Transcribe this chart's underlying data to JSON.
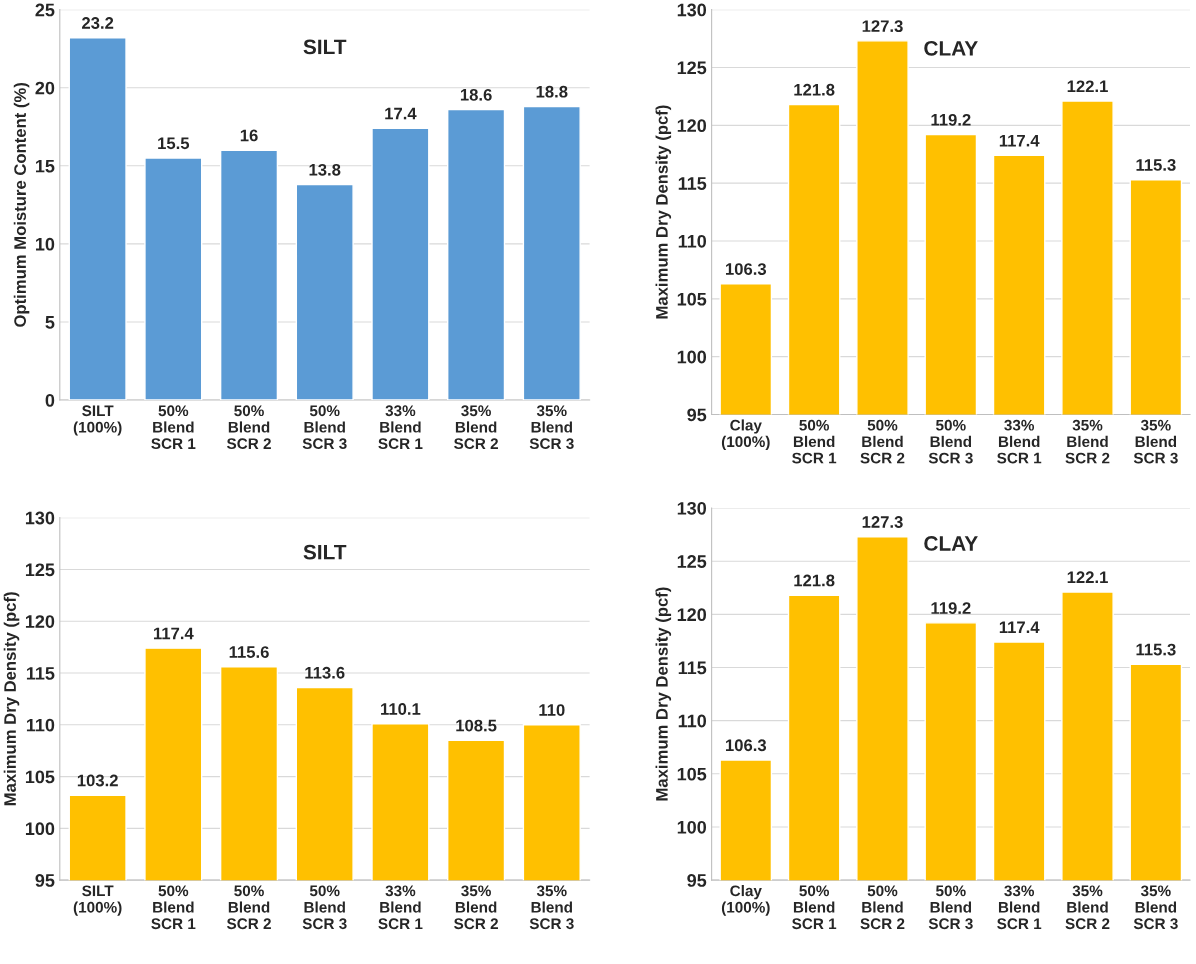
{
  "chart_data": [
    {
      "type": "bar",
      "title": "SILT",
      "ylabel": "Optimum Moisture Content (%)",
      "categories": [
        "SILT\n(100%)",
        "50%\nBlend\nSCR 1",
        "50%\nBlend\nSCR 2",
        "50%\nBlend\nSCR 3",
        "33%\nBlend\nSCR 1",
        "35%\nBlend\nSCR 2",
        "35%\nBlend\nSCR 3"
      ],
      "values": [
        23.2,
        15.5,
        16,
        13.8,
        17.4,
        18.6,
        18.8
      ],
      "color": "#5b9bd5",
      "ylim": [
        0,
        25
      ],
      "yticks": [
        0,
        5,
        10,
        15,
        20,
        25
      ],
      "grid": "y",
      "data_labels": true
    },
    {
      "type": "bar",
      "title": "CLAY",
      "ylabel": "Maximum Dry Density (pcf)",
      "categories": [
        "Clay\n(100%)",
        "50%\nBlend\nSCR 1",
        "50%\nBlend\nSCR 2",
        "50%\nBlend\nSCR 3",
        "33%\nBlend\nSCR 1",
        "35%\nBlend\nSCR 2",
        "35%\nBlend\nSCR 3"
      ],
      "values": [
        106.3,
        121.8,
        127.3,
        119.2,
        117.4,
        122.1,
        115.3
      ],
      "color": "#ffc000",
      "ylim": [
        95,
        130
      ],
      "yticks": [
        95,
        100,
        105,
        110,
        115,
        120,
        125,
        130
      ],
      "grid": "y",
      "data_labels": true
    },
    {
      "type": "bar",
      "title": "SILT",
      "ylabel": "Maximum Dry Density (pcf)",
      "categories": [
        "SILT\n(100%)",
        "50%\nBlend\nSCR 1",
        "50%\nBlend\nSCR 2",
        "50%\nBlend\nSCR 3",
        "33%\nBlend\nSCR 1",
        "35%\nBlend\nSCR 2",
        "35%\nBlend\nSCR 3"
      ],
      "values": [
        103.2,
        117.4,
        115.6,
        113.6,
        110.1,
        108.5,
        110
      ],
      "color": "#ffc000",
      "ylim": [
        95,
        130
      ],
      "yticks": [
        95,
        100,
        105,
        110,
        115,
        120,
        125,
        130
      ],
      "grid": "y",
      "data_labels": true
    },
    {
      "type": "bar",
      "title": "CLAY",
      "ylabel": "Maximum Dry Density (pcf)",
      "categories": [
        "Clay\n(100%)",
        "50%\nBlend\nSCR 1",
        "50%\nBlend\nSCR 2",
        "50%\nBlend\nSCR 3",
        "33%\nBlend\nSCR 1",
        "35%\nBlend\nSCR 2",
        "35%\nBlend\nSCR 3"
      ],
      "values": [
        106.3,
        121.8,
        127.3,
        119.2,
        117.4,
        122.1,
        115.3
      ],
      "color": "#ffc000",
      "ylim": [
        95,
        130
      ],
      "yticks": [
        95,
        100,
        105,
        110,
        115,
        120,
        125,
        130
      ],
      "grid": "y",
      "data_labels": true
    }
  ]
}
